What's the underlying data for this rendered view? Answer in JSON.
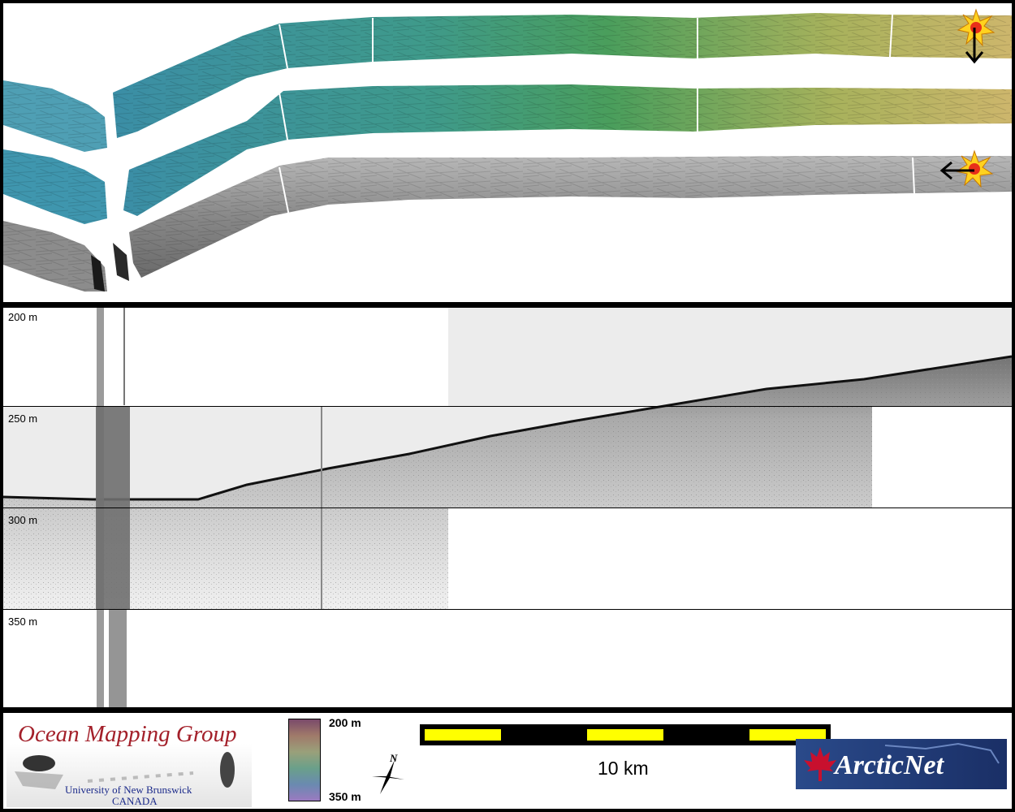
{
  "map": {
    "swath_colors": {
      "start": "#3d8fa3",
      "mid": "#3f9e5a",
      "end": "#c8b462",
      "backscatter": "#8a8a8a"
    },
    "icons": [
      "sun-illumination-icon",
      "arrow-down-icon",
      "arrow-left-icon"
    ]
  },
  "profile": {
    "depth_labels": [
      "200 m",
      "250 m",
      "300 m",
      "350 m"
    ]
  },
  "legend": {
    "group_name": "Ocean Mapping Group",
    "university": "University of New Brunswick",
    "country": "CANADA",
    "colorbar_top": "200 m",
    "colorbar_bottom": "350 m",
    "north_label": "N",
    "scale_label": "10 km",
    "scale_colors": {
      "bar": "#000000",
      "fill": "#ffff00"
    },
    "partner_logo": "ArcticNet",
    "partner_colors": {
      "bg": "#1e3a7a",
      "leaf": "#c8102e"
    }
  }
}
